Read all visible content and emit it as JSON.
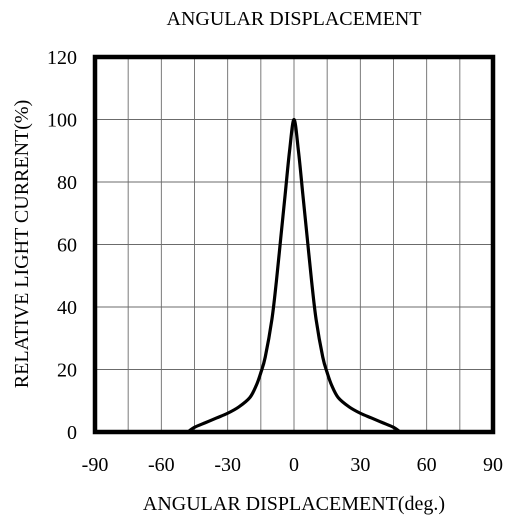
{
  "chart_data": {
    "type": "line",
    "title": "ANGULAR DISPLACEMENT",
    "xlabel": "ANGULAR DISPLACEMENT(deg.)",
    "ylabel": "RELATIVE LIGHT CURRENT(%)",
    "xlim": [
      -90,
      90
    ],
    "ylim": [
      0,
      120
    ],
    "x_ticks": [
      -90,
      -60,
      -30,
      0,
      30,
      60,
      90
    ],
    "y_ticks": [
      0,
      20,
      40,
      60,
      80,
      100,
      120
    ],
    "x_ticks_labels": [
      "-90",
      "-60",
      "-30",
      "0",
      "30",
      "60",
      "90"
    ],
    "y_ticks_labels": [
      "0",
      "20",
      "40",
      "60",
      "80",
      "100",
      "120"
    ],
    "grid": true,
    "x_grid_step": 15,
    "y_grid_step": 20,
    "series": [
      {
        "x": [
          -48,
          -45,
          -40,
          -35,
          -30,
          -25,
          -20,
          -17,
          -15,
          -13,
          -10,
          -8,
          -6,
          -4,
          -2,
          0,
          2,
          4,
          6,
          8,
          10,
          13,
          15,
          17,
          20,
          25,
          30,
          35,
          40,
          45,
          48
        ],
        "values": [
          0,
          1.5,
          3,
          4.5,
          6,
          8,
          11,
          15,
          19,
          24,
          36,
          48,
          62,
          76,
          90,
          100,
          90,
          76,
          62,
          48,
          36,
          24,
          19,
          15,
          11,
          8,
          6,
          4.5,
          3,
          1.5,
          0
        ]
      }
    ]
  }
}
